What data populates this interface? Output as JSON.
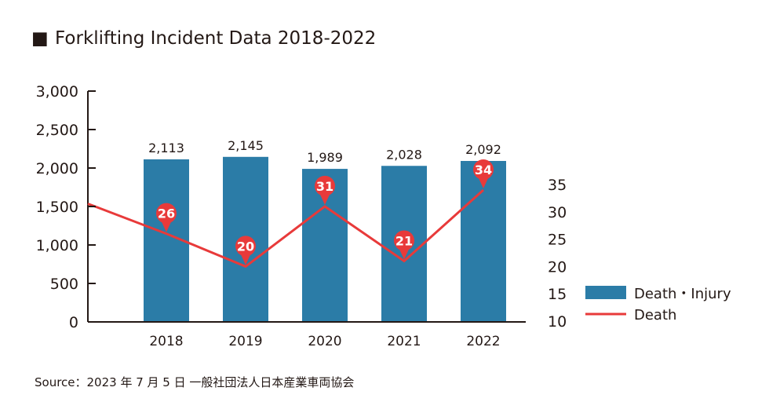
{
  "chart_data": {
    "type": "bar+line",
    "title": "Forklifting Incident Data 2018-2022",
    "title_marker": "■",
    "categories": [
      "2018",
      "2019",
      "2020",
      "2021",
      "2022"
    ],
    "series": [
      {
        "name": "Death・Injury",
        "type": "bar",
        "axis": "left",
        "values": [
          2113,
          2145,
          1989,
          2028,
          2092
        ],
        "labels": [
          "2,113",
          "2,145",
          "1,989",
          "2,028",
          "2,092"
        ],
        "color": "#2b7ca7"
      },
      {
        "name": "Death",
        "type": "line",
        "axis": "right",
        "values": [
          26,
          20,
          31,
          21,
          34
        ],
        "labels": [
          "26",
          "20",
          "31",
          "21",
          "34"
        ],
        "start_value": 1536,
        "color": "#e83a3a"
      }
    ],
    "left_axis": {
      "ylim": [
        0,
        3000
      ],
      "tick_values": [
        0,
        500,
        1000,
        1500,
        2000,
        2500,
        3000
      ],
      "tick_labels": [
        "0",
        "500",
        "1,000",
        "1,500",
        "2,000",
        "2,500",
        "3,000"
      ]
    },
    "right_axis": {
      "ylim": [
        10,
        35
      ],
      "tick_values": [
        10,
        15,
        20,
        25,
        30,
        35
      ],
      "tick_labels": [
        "10",
        "15",
        "20",
        "25",
        "30",
        "35"
      ]
    },
    "legend": {
      "placement": "right",
      "entries": [
        "Death・Injury",
        "Death"
      ]
    },
    "source": "Source：2023 年 7 月 5 日 一般社団法人日本産業車両協会"
  }
}
